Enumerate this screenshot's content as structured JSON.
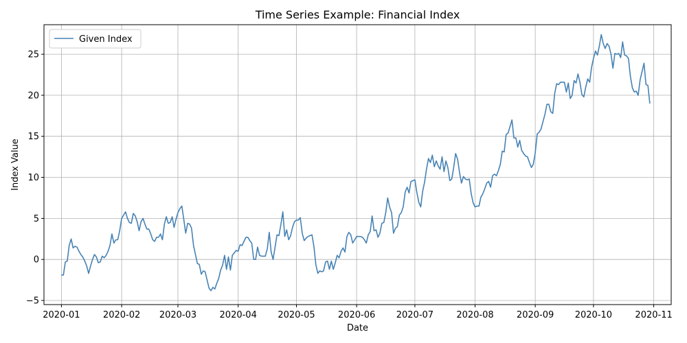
{
  "chart_data": {
    "type": "line",
    "title": "Time Series Example: Financial Index",
    "xlabel": "Date",
    "ylabel": "Index Value",
    "grid": true,
    "legend_position": "top-left",
    "x_range": [
      "2019-12-23",
      "2020-11-10"
    ],
    "ylim": [
      -5.5,
      28.6
    ],
    "x_ticks": [
      {
        "date": "2020-01-01",
        "label": "2020-01"
      },
      {
        "date": "2020-02-01",
        "label": "2020-02"
      },
      {
        "date": "2020-03-01",
        "label": "2020-03"
      },
      {
        "date": "2020-04-01",
        "label": "2020-04"
      },
      {
        "date": "2020-05-01",
        "label": "2020-05"
      },
      {
        "date": "2020-06-01",
        "label": "2020-06"
      },
      {
        "date": "2020-07-01",
        "label": "2020-07"
      },
      {
        "date": "2020-08-01",
        "label": "2020-08"
      },
      {
        "date": "2020-09-01",
        "label": "2020-09"
      },
      {
        "date": "2020-10-01",
        "label": "2020-10"
      },
      {
        "date": "2020-11-01",
        "label": "2020-11"
      }
    ],
    "y_ticks": [
      {
        "value": -5,
        "label": "−5"
      },
      {
        "value": 0,
        "label": "0"
      },
      {
        "value": 5,
        "label": "5"
      },
      {
        "value": 10,
        "label": "10"
      },
      {
        "value": 15,
        "label": "15"
      },
      {
        "value": 20,
        "label": "20"
      },
      {
        "value": 25,
        "label": "25"
      }
    ],
    "series": [
      {
        "name": "Given Index",
        "color": "#4682b4",
        "start_date": "2020-01-01",
        "step_days": 1,
        "values": [
          -1.9,
          -1.9,
          -0.3,
          -0.2,
          1.7,
          2.5,
          1.4,
          1.6,
          1.5,
          1.0,
          0.6,
          0.3,
          -0.2,
          -0.8,
          -1.7,
          -0.8,
          0.0,
          0.6,
          0.3,
          -0.4,
          -0.3,
          0.4,
          0.2,
          0.5,
          1.0,
          1.7,
          3.1,
          2.0,
          2.4,
          2.4,
          3.5,
          5.0,
          5.4,
          5.8,
          5.0,
          4.5,
          4.4,
          5.6,
          5.3,
          4.6,
          3.5,
          4.6,
          5.0,
          4.3,
          3.7,
          3.7,
          3.1,
          2.4,
          2.2,
          2.7,
          2.7,
          3.1,
          2.4,
          4.3,
          5.2,
          4.4,
          4.5,
          5.2,
          3.9,
          4.9,
          5.7,
          6.2,
          6.5,
          4.9,
          3.2,
          4.4,
          4.3,
          3.8,
          1.7,
          0.6,
          -0.5,
          -0.6,
          -1.8,
          -1.4,
          -1.5,
          -2.5,
          -3.5,
          -3.8,
          -3.4,
          -3.6,
          -2.9,
          -2.3,
          -1.3,
          -0.7,
          0.5,
          -1.2,
          0.3,
          -1.3,
          0.5,
          0.8,
          1.1,
          1.0,
          1.8,
          1.7,
          2.2,
          2.7,
          2.7,
          2.3,
          2.0,
          0.0,
          0.0,
          1.5,
          0.5,
          0.4,
          0.4,
          0.4,
          1.3,
          3.3,
          0.9,
          0.0,
          1.5,
          3.0,
          2.9,
          4.2,
          5.8,
          2.8,
          3.6,
          2.4,
          2.9,
          3.9,
          4.6,
          4.8,
          4.8,
          5.1,
          3.2,
          2.3,
          2.6,
          2.8,
          2.9,
          3.0,
          1.6,
          -0.6,
          -1.7,
          -1.4,
          -1.5,
          -1.4,
          -0.3,
          -0.2,
          -1.2,
          -0.2,
          -1.2,
          -0.4,
          0.5,
          0.2,
          1.0,
          1.4,
          0.9,
          2.8,
          3.3,
          3.0,
          2.0,
          2.4,
          2.8,
          2.8,
          2.8,
          2.7,
          2.4,
          2.0,
          3.0,
          3.4,
          5.3,
          3.5,
          3.6,
          2.7,
          3.2,
          4.4,
          4.5,
          5.7,
          7.5,
          6.4,
          5.7,
          3.2,
          3.8,
          4.0,
          5.4,
          5.7,
          6.4,
          8.2,
          8.8,
          8.1,
          9.5,
          9.6,
          9.7,
          8.2,
          7.0,
          6.4,
          8.3,
          9.4,
          11.0,
          12.3,
          11.8,
          12.7,
          11.3,
          12.0,
          11.4,
          11.0,
          12.5,
          10.7,
          12.0,
          11.2,
          9.6,
          9.8,
          11.2,
          12.9,
          12.2,
          10.6,
          9.3,
          10.1,
          9.8,
          9.7,
          9.8,
          8.0,
          6.9,
          6.4,
          6.5,
          6.5,
          7.6,
          8.0,
          8.6,
          9.3,
          9.5,
          8.8,
          10.2,
          10.4,
          10.2,
          10.8,
          11.6,
          13.2,
          13.1,
          15.2,
          15.4,
          16.2,
          17.0,
          14.8,
          14.8,
          13.7,
          14.5,
          13.3,
          12.9,
          12.6,
          12.5,
          11.8,
          11.2,
          11.6,
          13.0,
          15.3,
          15.5,
          15.9,
          16.8,
          17.7,
          18.9,
          18.9,
          18.0,
          17.8,
          20.2,
          21.4,
          21.3,
          21.6,
          21.6,
          21.6,
          20.4,
          21.5,
          19.6,
          20.0,
          21.8,
          21.5,
          22.6,
          21.6,
          20.1,
          19.8,
          21.0,
          22.0,
          21.6,
          23.4,
          24.5,
          25.4,
          24.9,
          26.0,
          27.4,
          26.3,
          25.7,
          26.3,
          26.0,
          25.0,
          23.3,
          25.1,
          25.0,
          25.1,
          24.6,
          26.5,
          24.9,
          24.8,
          24.5,
          22.3,
          20.9,
          20.4,
          20.5,
          20.0,
          21.9,
          22.9,
          23.9,
          21.3,
          21.2,
          19.0
        ]
      }
    ]
  }
}
